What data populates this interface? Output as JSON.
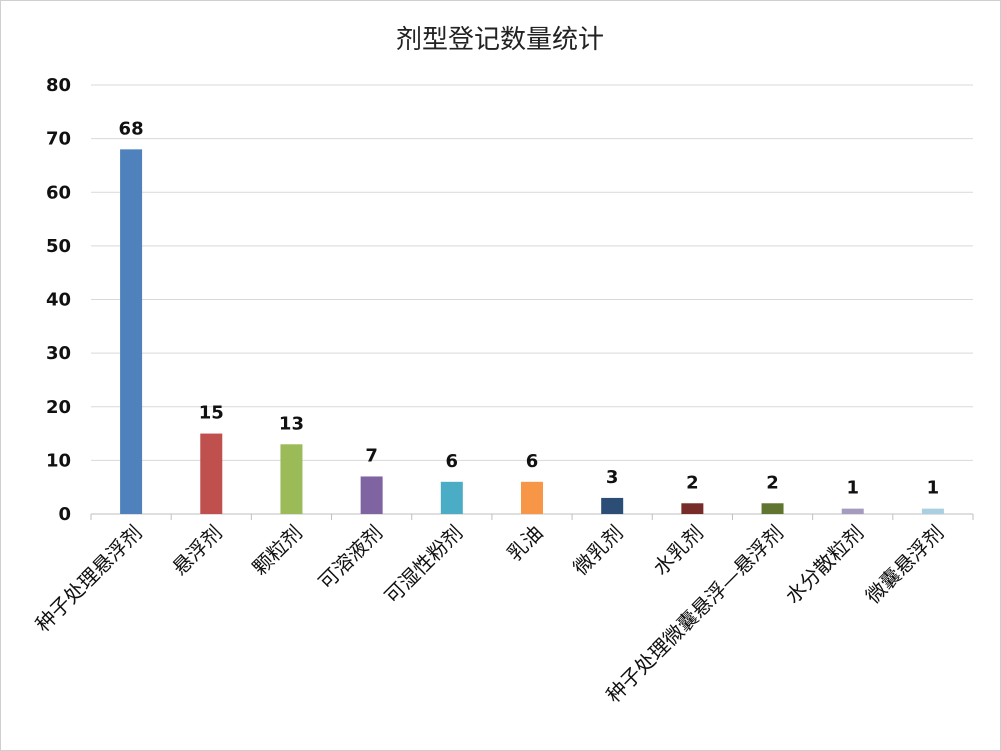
{
  "chart_data": {
    "type": "bar",
    "title": "剂型登记数量统计",
    "xlabel": "",
    "ylabel": "",
    "categories": [
      "种子处理悬浮剂",
      "悬浮剂",
      "颗粒剂",
      "可溶液剂",
      "可湿性粉剂",
      "乳油",
      "微乳剂",
      "水乳剂",
      "种子处理微囊悬浮—悬浮剂",
      "水分散粒剂",
      "微囊悬浮剂"
    ],
    "values": [
      68,
      15,
      13,
      7,
      6,
      6,
      3,
      2,
      2,
      1,
      1
    ],
    "colors": [
      "#4f81bd",
      "#c0504d",
      "#9bbb59",
      "#8064a2",
      "#4bacc6",
      "#f79646",
      "#2c4d75",
      "#772c2a",
      "#5f7530",
      "#a49bbf",
      "#a9cfe0"
    ],
    "ylim": [
      0,
      80
    ],
    "yticks": [
      0,
      10,
      20,
      30,
      40,
      50,
      60,
      70,
      80
    ],
    "grid": true,
    "legend": "none",
    "data_labels": true
  }
}
